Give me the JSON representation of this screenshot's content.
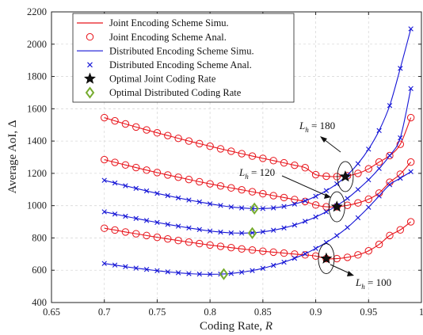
{
  "chart_data": {
    "type": "line",
    "xlabel": "Coding Rate, R",
    "ylabel": "Average AoI, Δ",
    "xlim": [
      0.65,
      1.0
    ],
    "ylim": [
      400,
      2200
    ],
    "xticks": [
      "0.65",
      "0.7",
      "0.75",
      "0.8",
      "0.85",
      "0.9",
      "0.95",
      "1"
    ],
    "yticks": [
      "400",
      "600",
      "800",
      "1000",
      "1200",
      "1400",
      "1600",
      "1800",
      "2000",
      "2200"
    ],
    "grid": true,
    "legend_position": "top-left",
    "colors": {
      "joint": "#e8141b",
      "distributed": "#1515d6",
      "optimal_joint": "#111111",
      "optimal_distributed": "#77ac30"
    },
    "legend": [
      "Joint Encoding Scheme Simu.",
      "Joint Encoding Scheme Anal.",
      "Distributed Encoding Scheme Simu.",
      "Distributed Encoding Scheme Anal.",
      "Optimal Joint Coding Rate",
      "Optimal Distributed Coding Rate"
    ],
    "series": [
      {
        "scheme": "joint",
        "Lh": 100,
        "x": [
          0.7,
          0.71,
          0.72,
          0.73,
          0.74,
          0.75,
          0.76,
          0.77,
          0.78,
          0.79,
          0.8,
          0.81,
          0.82,
          0.83,
          0.84,
          0.85,
          0.86,
          0.87,
          0.88,
          0.89,
          0.9,
          0.91,
          0.92,
          0.93,
          0.94,
          0.95,
          0.96,
          0.97,
          0.98,
          0.99
        ],
        "y": [
          860,
          849,
          837,
          826,
          815,
          804,
          794,
          784,
          774,
          765,
          756,
          748,
          740,
          732,
          725,
          718,
          712,
          706,
          700,
          695,
          688,
          672,
          672,
          680,
          695,
          720,
          760,
          815,
          850,
          900
        ]
      },
      {
        "scheme": "joint",
        "Lh": 120,
        "x": [
          0.7,
          0.71,
          0.72,
          0.73,
          0.74,
          0.75,
          0.76,
          0.77,
          0.78,
          0.79,
          0.8,
          0.81,
          0.82,
          0.83,
          0.84,
          0.85,
          0.86,
          0.87,
          0.88,
          0.89,
          0.9,
          0.91,
          0.92,
          0.93,
          0.94,
          0.95,
          0.96,
          0.97,
          0.98,
          0.99
        ],
        "y": [
          1285,
          1268,
          1252,
          1236,
          1220,
          1205,
          1190,
          1176,
          1162,
          1148,
          1135,
          1122,
          1110,
          1098,
          1086,
          1074,
          1062,
          1050,
          1038,
          1026,
          1004,
          993,
          993,
          1002,
          1017,
          1040,
          1078,
          1145,
          1195,
          1270
        ]
      },
      {
        "scheme": "joint",
        "Lh": 180,
        "x": [
          0.7,
          0.71,
          0.72,
          0.73,
          0.74,
          0.75,
          0.76,
          0.77,
          0.78,
          0.79,
          0.8,
          0.81,
          0.82,
          0.83,
          0.84,
          0.85,
          0.86,
          0.87,
          0.88,
          0.89,
          0.9,
          0.91,
          0.92,
          0.93,
          0.94,
          0.95,
          0.96,
          0.97,
          0.98,
          0.99
        ],
        "y": [
          1545,
          1525,
          1506,
          1487,
          1469,
          1451,
          1434,
          1417,
          1400,
          1384,
          1368,
          1352,
          1337,
          1322,
          1307,
          1293,
          1279,
          1265,
          1250,
          1235,
          1192,
          1182,
          1180,
          1185,
          1200,
          1228,
          1270,
          1310,
          1380,
          1545
        ]
      },
      {
        "scheme": "distributed",
        "Lh": 100,
        "x": [
          0.7,
          0.71,
          0.72,
          0.73,
          0.74,
          0.75,
          0.76,
          0.77,
          0.78,
          0.79,
          0.8,
          0.81,
          0.82,
          0.83,
          0.84,
          0.85,
          0.86,
          0.87,
          0.88,
          0.89,
          0.9,
          0.91,
          0.92,
          0.93,
          0.94,
          0.95,
          0.96,
          0.97,
          0.98,
          0.99
        ],
        "y": [
          642,
          632,
          622,
          613,
          605,
          597,
          590,
          584,
          579,
          576,
          575,
          576,
          580,
          588,
          598,
          612,
          630,
          650,
          674,
          702,
          735,
          772,
          815,
          865,
          925,
          990,
          1060,
          1130,
          1170,
          1210
        ]
      },
      {
        "scheme": "distributed",
        "Lh": 120,
        "x": [
          0.7,
          0.71,
          0.72,
          0.73,
          0.74,
          0.75,
          0.76,
          0.77,
          0.78,
          0.79,
          0.8,
          0.81,
          0.82,
          0.83,
          0.84,
          0.85,
          0.86,
          0.87,
          0.88,
          0.89,
          0.9,
          0.91,
          0.92,
          0.93,
          0.94,
          0.95,
          0.96,
          0.97,
          0.98,
          0.99
        ],
        "y": [
          962,
          948,
          934,
          921,
          908,
          896,
          884,
          873,
          862,
          852,
          843,
          836,
          831,
          830,
          832,
          838,
          848,
          862,
          880,
          903,
          930,
          962,
          1000,
          1045,
          1100,
          1160,
          1230,
          1310,
          1420,
          1725
        ]
      },
      {
        "scheme": "distributed",
        "Lh": 180,
        "x": [
          0.7,
          0.71,
          0.72,
          0.73,
          0.74,
          0.75,
          0.76,
          0.77,
          0.78,
          0.79,
          0.8,
          0.81,
          0.82,
          0.83,
          0.84,
          0.85,
          0.86,
          0.87,
          0.88,
          0.89,
          0.9,
          0.91,
          0.92,
          0.93,
          0.94,
          0.95,
          0.96,
          0.97,
          0.98,
          0.99
        ],
        "y": [
          1157,
          1140,
          1123,
          1107,
          1091,
          1076,
          1062,
          1048,
          1035,
          1023,
          1011,
          1001,
          992,
          986,
          982,
          982,
          986,
          995,
          1010,
          1030,
          1058,
          1093,
          1135,
          1190,
          1260,
          1350,
          1465,
          1620,
          1850,
          2095
        ]
      }
    ],
    "optimal_joint": [
      {
        "x": 0.91,
        "y": 672
      },
      {
        "x": 0.92,
        "y": 993
      },
      {
        "x": 0.928,
        "y": 1180
      }
    ],
    "optimal_distributed": [
      {
        "x": 0.813,
        "y": 576
      },
      {
        "x": 0.84,
        "y": 830
      },
      {
        "x": 0.842,
        "y": 982
      }
    ],
    "annotations": [
      {
        "label": "L",
        "sub": "h",
        "rest": " = 180"
      },
      {
        "label": "L",
        "sub": "h",
        "rest": " = 120"
      },
      {
        "label": "L",
        "sub": "h",
        "rest": " = 100"
      }
    ]
  }
}
